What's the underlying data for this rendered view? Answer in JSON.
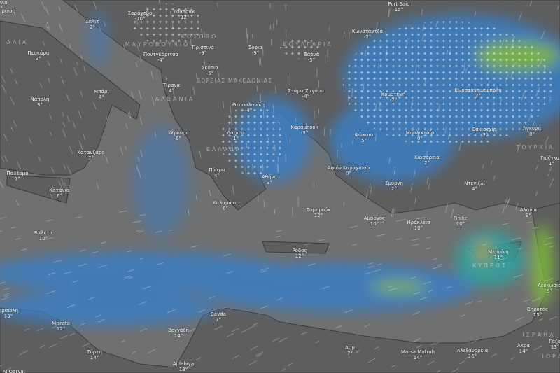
{
  "map": {
    "layer": "precipitation-wind",
    "colors": {
      "sea": "#737373",
      "land": "#5e5e5e",
      "rain_light": "#3a7fc4",
      "rain_mid": "#2fa3a0",
      "rain_heavy": "#7fbf3a",
      "snow": "#ffffff"
    },
    "countries": [
      "ΑΛΙΑ",
      "ΜΑΥΡΟΒΟΥΝΙΟ",
      "ΚΟΣΟΒΟ",
      "ΒΟΡΕΙΑΣ ΜΑΚΕΔΟΝΙΑΣ",
      "ΑΛΒΑΝΙΑ",
      "ΕΛΛΑΔΑ",
      "ΒΟΥΛΓΑΡΙΑ",
      "ΤΟΥΡΚΙΑ",
      "ΚΥΠΡΟΣ",
      "ΙΣΡΑΗΛ",
      "ΙΟΡΔ"
    ],
    "cities": [
      {
        "name": "ρίνος",
        "temp": ""
      },
      {
        "name": "Σαράγεβο",
        "temp": "-10°"
      },
      {
        "name": "Τσατσακ",
        "temp": "-12°"
      },
      {
        "name": "Σπλιτ",
        "temp": "2°"
      },
      {
        "name": "Πρίστινα",
        "temp": "-9°"
      },
      {
        "name": "Ποντγκόριτσα",
        "temp": "-4°"
      },
      {
        "name": "Σόφια",
        "temp": "-9°"
      },
      {
        "name": "Πεσκάρα",
        "temp": "3°"
      },
      {
        "name": "Σκόπια",
        "temp": "-5°"
      },
      {
        "name": "Μπάρι",
        "temp": "4°"
      },
      {
        "name": "Τίρανα",
        "temp": "4°"
      },
      {
        "name": "Νάπολη",
        "temp": "3°"
      },
      {
        "name": "Θεσσαλονίκη",
        "temp": "-4°"
      },
      {
        "name": "Κέρκυρα",
        "temp": "6°"
      },
      {
        "name": "Λάρισα",
        "temp": "1°"
      },
      {
        "name": "Κατανζάρο",
        "temp": "7°"
      },
      {
        "name": "Παλέρμο",
        "temp": "7°"
      },
      {
        "name": "Πάτρα",
        "temp": "4°"
      },
      {
        "name": "Αθήνα",
        "temp": "3°"
      },
      {
        "name": "Κατάνια",
        "temp": "6°"
      },
      {
        "name": "Βαλέτα",
        "temp": "10°"
      },
      {
        "name": "Καλαμάτα",
        "temp": "6°"
      },
      {
        "name": "Τρίπολη",
        "temp": "13°"
      },
      {
        "name": "Misrata",
        "temp": "12°"
      },
      {
        "name": "Σύρτη",
        "temp": "14°"
      },
      {
        "name": "Al Qaryat",
        "temp": ""
      },
      {
        "name": "Βεγγάζη",
        "temp": "14°"
      },
      {
        "name": "Bayda",
        "temp": "7°"
      },
      {
        "name": "Ajdabiya",
        "temp": "13°"
      },
      {
        "name": "Ταμπρούκ",
        "temp": "12°"
      },
      {
        "name": "Αμοργός",
        "temp": "10°"
      },
      {
        "name": "Ρόδος",
        "temp": "12°"
      },
      {
        "name": "Ηράκλειο",
        "temp": "10°"
      },
      {
        "name": "Finike",
        "temp": "10°"
      },
      {
        "name": "Αλάνια",
        "temp": "9°"
      },
      {
        "name": "Μερσίνη",
        "temp": "11°"
      },
      {
        "name": "Λευκωσία",
        "temp": "9°"
      },
      {
        "name": "Βηρυτός",
        "temp": "15°"
      },
      {
        "name": "Άκρα",
        "temp": "14°"
      },
      {
        "name": "Γάζα",
        "temp": "13°"
      },
      {
        "name": "Αμμ",
        "temp": "7°"
      },
      {
        "name": "Marsa Matruh",
        "temp": "14°"
      },
      {
        "name": "Αλεξάνδρεια",
        "temp": "16°"
      },
      {
        "name": "Port Said",
        "temp": "15°"
      },
      {
        "name": "Κωνστάντζα",
        "temp": "-2°"
      },
      {
        "name": "Βάρνα",
        "temp": "-5°"
      },
      {
        "name": "Στάρα Ζαγόρα",
        "temp": "-4°"
      },
      {
        "name": "Κομοτηνή",
        "temp": "-2°"
      },
      {
        "name": "Κωνσταντινούπολη",
        "temp": "2°"
      },
      {
        "name": "Καραμπούκ",
        "temp": "-3°"
      },
      {
        "name": "Φώκαια",
        "temp": "5°"
      },
      {
        "name": "Μπαλικεσίρ",
        "temp": "0°"
      },
      {
        "name": "Εσκισεχίρ",
        "temp": "-3°"
      },
      {
        "name": "Άγκυρα",
        "temp": "0°"
      },
      {
        "name": "Γιόζγκατ",
        "temp": "1°"
      },
      {
        "name": "Καισάρεια",
        "temp": "2°"
      },
      {
        "name": "Αφιόν Καραχισάρ",
        "temp": "0°"
      },
      {
        "name": "Σμύρνη",
        "temp": "2°"
      },
      {
        "name": "Ντενιζλί",
        "temp": "4°"
      },
      {
        "name": "Ικόνιο",
        "temp": "1°"
      }
    ]
  }
}
